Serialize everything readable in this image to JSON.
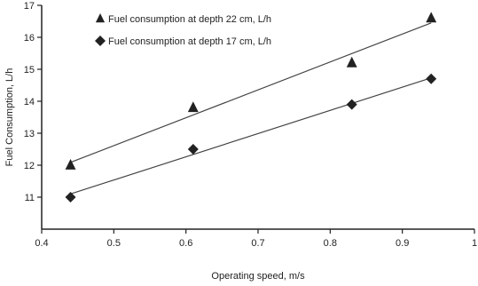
{
  "chart_data": {
    "type": "scatter",
    "xlabel": "Operating speed, m/s",
    "ylabel": "Fuel Consumption, L/h",
    "xlim": [
      0.4,
      1.0
    ],
    "ylim": [
      10,
      17
    ],
    "x_ticks": [
      "0.4",
      "0.5",
      "0.6",
      "0.7",
      "0.8",
      "0.9",
      "1"
    ],
    "y_ticks": [
      "11",
      "12",
      "13",
      "14",
      "15",
      "16",
      "17"
    ],
    "grid": false,
    "legend_position": "top-left",
    "series": [
      {
        "name": "Fuel consumption at depth 22 cm, L/h",
        "marker": "triangle",
        "color": "#222222",
        "x": [
          0.44,
          0.61,
          0.83,
          0.94
        ],
        "y": [
          12.0,
          13.8,
          15.2,
          16.6
        ],
        "trendline": true
      },
      {
        "name": "Fuel consumption at depth 17 cm, L/h",
        "marker": "diamond",
        "color": "#222222",
        "x": [
          0.44,
          0.61,
          0.83,
          0.94
        ],
        "y": [
          11.0,
          12.5,
          13.9,
          14.7
        ],
        "trendline": true
      }
    ]
  }
}
